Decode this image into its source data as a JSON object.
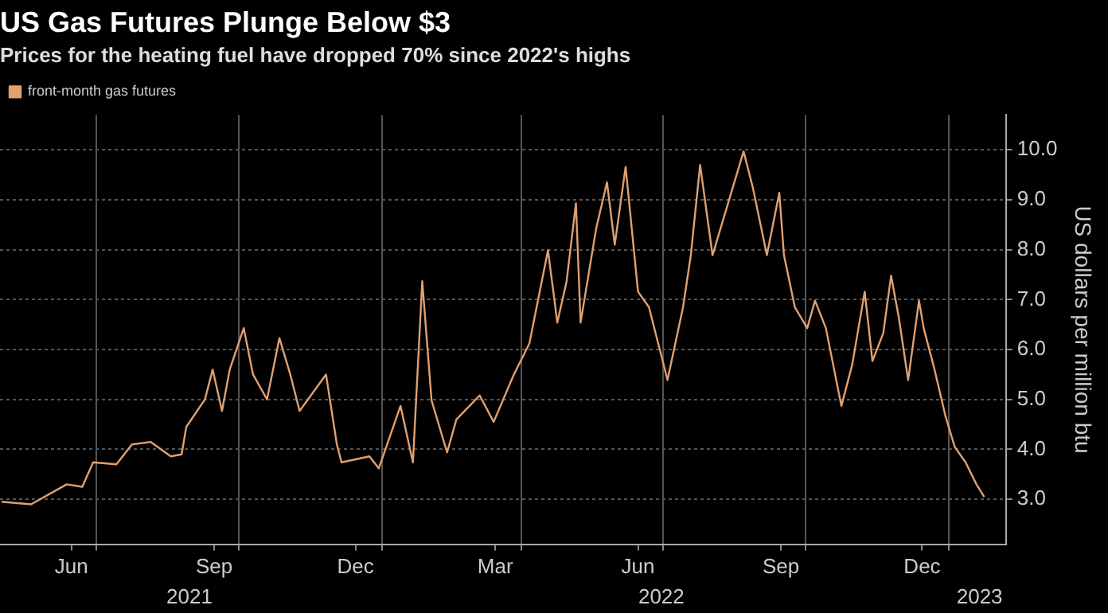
{
  "chart_data": {
    "type": "line",
    "title": "US Gas Futures Plunge Below $3",
    "subtitle": "Prices for the heating fuel have dropped 70% since 2022's highs",
    "ylabel": "US dollars per million btu",
    "legend": "top left",
    "grid": true,
    "x": [
      "2021-05-01",
      "2021-05-20",
      "2021-06-12",
      "2021-06-22",
      "2021-06-29",
      "2021-07-14",
      "2021-07-24",
      "2021-08-05",
      "2021-08-18",
      "2021-08-25",
      "2021-08-28",
      "2021-09-09",
      "2021-09-14",
      "2021-09-20",
      "2021-09-25",
      "2021-10-04",
      "2021-10-10",
      "2021-10-19",
      "2021-10-27",
      "2021-11-03",
      "2021-11-09",
      "2021-11-26",
      "2021-12-03",
      "2021-12-06",
      "2021-12-24",
      "2021-12-30",
      "2022-01-13",
      "2022-01-21",
      "2022-01-27",
      "2022-02-02",
      "2022-02-12",
      "2022-02-18",
      "2022-03-05",
      "2022-03-14",
      "2022-03-27",
      "2022-04-06",
      "2022-04-18",
      "2022-04-24",
      "2022-04-30",
      "2022-05-06",
      "2022-05-09",
      "2022-05-19",
      "2022-05-26",
      "2022-05-31",
      "2022-06-07",
      "2022-06-15",
      "2022-06-22",
      "2022-06-28",
      "2022-07-04",
      "2022-07-14",
      "2022-07-19",
      "2022-07-25",
      "2022-08-02",
      "2022-08-12",
      "2022-08-22",
      "2022-08-28",
      "2022-09-06",
      "2022-09-14",
      "2022-09-17",
      "2022-09-24",
      "2022-10-02",
      "2022-10-07",
      "2022-10-14",
      "2022-10-24",
      "2022-10-31",
      "2022-11-08",
      "2022-11-13",
      "2022-11-20",
      "2022-11-25",
      "2022-11-30",
      "2022-12-06",
      "2022-12-13",
      "2022-12-16",
      "2022-12-23",
      "2022-12-30",
      "2023-01-05",
      "2023-01-12",
      "2023-01-19",
      "2023-01-24"
    ],
    "series": [
      {
        "name": "front-month gas futures",
        "color": "#e0a070",
        "values": [
          2.95,
          2.9,
          3.3,
          3.25,
          3.74,
          3.7,
          4.1,
          4.15,
          3.86,
          3.9,
          4.45,
          5.0,
          5.6,
          4.77,
          5.6,
          6.43,
          5.5,
          5.0,
          6.23,
          5.5,
          4.77,
          5.5,
          4.1,
          3.74,
          3.86,
          3.62,
          4.87,
          3.74,
          7.37,
          4.98,
          3.94,
          4.6,
          5.08,
          4.55,
          5.5,
          6.12,
          7.99,
          6.54,
          7.37,
          8.93,
          6.54,
          8.42,
          9.35,
          8.1,
          9.66,
          7.16,
          6.85,
          6.12,
          5.39,
          6.85,
          7.89,
          9.7,
          7.89,
          8.93,
          9.97,
          9.24,
          7.89,
          9.14,
          7.89,
          6.85,
          6.43,
          6.98,
          6.43,
          4.87,
          5.7,
          7.16,
          5.77,
          6.33,
          7.48,
          6.64,
          5.39,
          6.98,
          6.43,
          5.6,
          4.67,
          4.05,
          3.74,
          3.3,
          3.05
        ]
      }
    ],
    "xlim": [
      "2021-04-30",
      "2023-02-07"
    ],
    "xticks": [
      {
        "value": "2021-06-15",
        "label": "Jun"
      },
      {
        "value": "2021-07-01",
        "label": null
      },
      {
        "value": "2021-09-15",
        "label": "Sep"
      },
      {
        "value": "2021-10-01",
        "label": null
      },
      {
        "value": "2021-12-15",
        "label": "Dec"
      },
      {
        "value": "2022-01-01",
        "label": null
      },
      {
        "value": "2022-03-15",
        "label": "Mar"
      },
      {
        "value": "2022-04-01",
        "label": null
      },
      {
        "value": "2022-06-15",
        "label": "Jun"
      },
      {
        "value": "2022-07-01",
        "label": null
      },
      {
        "value": "2022-09-15",
        "label": "Sep"
      },
      {
        "value": "2022-10-01",
        "label": null
      },
      {
        "value": "2022-12-15",
        "label": "Dec"
      },
      {
        "value": "2023-01-01",
        "label": null
      }
    ],
    "ylim": [
      2.1,
      10.7
    ],
    "yticks": [
      {
        "value": 3,
        "label": "3.0"
      },
      {
        "value": 4,
        "label": "4.0"
      },
      {
        "value": 5,
        "label": "5.0"
      },
      {
        "value": 6,
        "label": "6.0"
      },
      {
        "value": 7,
        "label": "7.0"
      },
      {
        "value": 8,
        "label": "8.0"
      },
      {
        "value": 9,
        "label": "9.0"
      },
      {
        "value": 10,
        "label": "10.0"
      }
    ],
    "x2lim": [
      "2021-04-30",
      "2023-02-07"
    ],
    "x2ticks": [
      {
        "value": "2021-08-30",
        "label": "2021"
      },
      {
        "value": "2022-06-30",
        "label": "2022"
      },
      {
        "value": "2023-01-21",
        "label": "2023"
      }
    ]
  }
}
